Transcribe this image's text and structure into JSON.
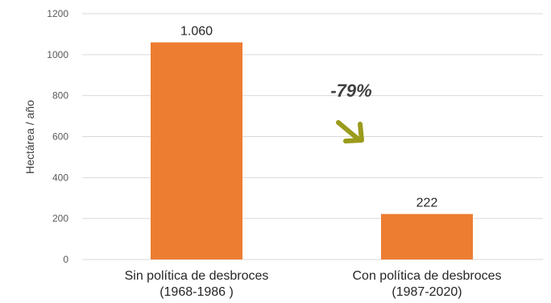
{
  "chart_data": {
    "type": "bar",
    "categories": [
      [
        "Sin política de desbroces",
        "(1968-1986 )"
      ],
      [
        "Con política de desbroces",
        "(1987-2020)"
      ]
    ],
    "values": [
      1060,
      222
    ],
    "data_labels": [
      "1.060",
      "222"
    ],
    "title": "",
    "xlabel": "",
    "ylabel": "Hectárea / año",
    "ylim": [
      0,
      1200
    ],
    "yticks": [
      0,
      200,
      400,
      600,
      800,
      1000,
      1200
    ],
    "grid": true,
    "legend": "none",
    "annotation": {
      "text": "-79%",
      "arrow_direction": "down-right",
      "arrow_color": "#9b9b1c"
    },
    "colors": {
      "bar": "#ed7d31",
      "grid": "#d9d9d9"
    }
  }
}
